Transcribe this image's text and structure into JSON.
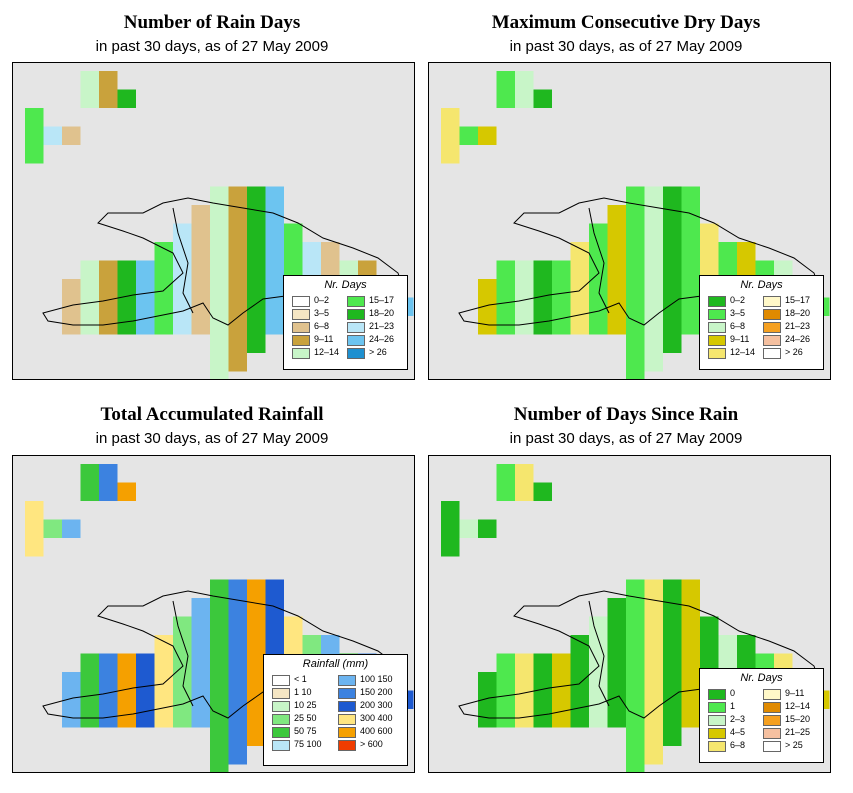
{
  "subtitle": "in past 30 days, as of  27 May 2009",
  "colors": {
    "background": "#e5e5e5",
    "outline": "#000000"
  },
  "panels": [
    {
      "id": "rain-days",
      "title": "Number of Rain Days",
      "subtitle": "in past 30 days, as of  27 May 2009",
      "legend": {
        "title": "Nr. Days",
        "items": [
          {
            "label": "0–2",
            "color": "#ffffff"
          },
          {
            "label": "3–5",
            "color": "#f5e6c4"
          },
          {
            "label": "6–8",
            "color": "#e0c28e"
          },
          {
            "label": "9–11",
            "color": "#c9a23c"
          },
          {
            "label": "12–14",
            "color": "#c8f5c8"
          },
          {
            "label": "15–17",
            "color": "#4ee84e"
          },
          {
            "label": "18–20",
            "color": "#1fb81f"
          },
          {
            "label": "21–23",
            "color": "#b9e6f7"
          },
          {
            "label": "24–26",
            "color": "#6cc4f0"
          },
          {
            "label": "> 26",
            "color": "#1e90d0"
          }
        ]
      }
    },
    {
      "id": "dry-days",
      "title": "Maximum Consecutive Dry Days",
      "subtitle": "in past 30 days, as of  27 May 2009",
      "legend": {
        "title": "Nr. Days",
        "items": [
          {
            "label": "0–2",
            "color": "#1fb81f"
          },
          {
            "label": "3–5",
            "color": "#4ee84e"
          },
          {
            "label": "6–8",
            "color": "#c8f5c8"
          },
          {
            "label": "9–11",
            "color": "#d6c800"
          },
          {
            "label": "12–14",
            "color": "#f5e66e"
          },
          {
            "label": "15–17",
            "color": "#fff8c8"
          },
          {
            "label": "18–20",
            "color": "#e08a00"
          },
          {
            "label": "21–23",
            "color": "#f5a020"
          },
          {
            "label": "24–26",
            "color": "#f5c0a0"
          },
          {
            "label": "> 26",
            "color": "#ffffff"
          }
        ]
      }
    },
    {
      "id": "rainfall",
      "title": "Total Accumulated Rainfall",
      "subtitle": "in past 30 days, as of  27 May 2009",
      "legend": {
        "title": "Rainfall (mm)",
        "items": [
          {
            "label": "< 1",
            "color": "#ffffff"
          },
          {
            "label": "1   10",
            "color": "#f5e6c4"
          },
          {
            "label": "10   25",
            "color": "#c8f5c8"
          },
          {
            "label": "25   50",
            "color": "#80e880"
          },
          {
            "label": "50   75",
            "color": "#3cc83c"
          },
          {
            "label": "75  100",
            "color": "#b9e6f7"
          },
          {
            "label": "100  150",
            "color": "#6cb4f0"
          },
          {
            "label": "150  200",
            "color": "#3c82e0"
          },
          {
            "label": "200  300",
            "color": "#1e5ad0"
          },
          {
            "label": "300  400",
            "color": "#ffe680"
          },
          {
            "label": "400  600",
            "color": "#f5a000"
          },
          {
            "label": "> 600",
            "color": "#f03c00"
          }
        ]
      }
    },
    {
      "id": "since-rain",
      "title": "Number of Days Since Rain",
      "subtitle": "in past 30 days, as of  27 May 2009",
      "legend": {
        "title": "Nr. Days",
        "items": [
          {
            "label": "0",
            "color": "#1fb81f"
          },
          {
            "label": "1",
            "color": "#4ee84e"
          },
          {
            "label": "2–3",
            "color": "#c8f5c8"
          },
          {
            "label": "4–5",
            "color": "#d6c800"
          },
          {
            "label": "6–8",
            "color": "#f5e66e"
          },
          {
            "label": "9–11",
            "color": "#fff8c8"
          },
          {
            "label": "12–14",
            "color": "#e08a00"
          },
          {
            "label": "15–20",
            "color": "#f5a020"
          },
          {
            "label": "21–25",
            "color": "#f5c0a0"
          },
          {
            "label": "> 25",
            "color": "#ffffff"
          }
        ]
      }
    }
  ]
}
